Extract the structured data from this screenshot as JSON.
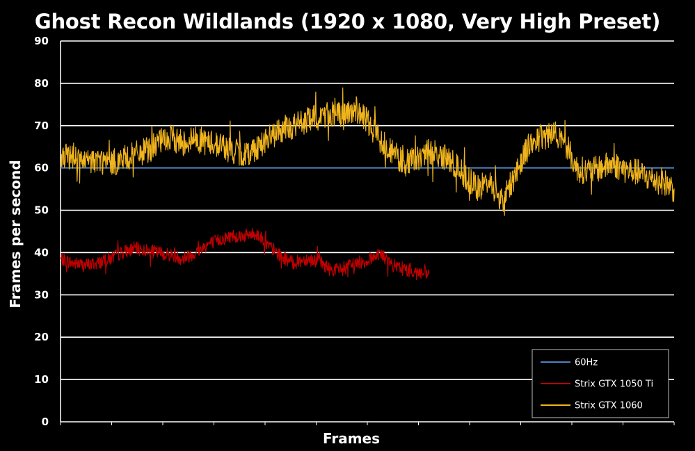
{
  "chart_data": {
    "type": "line",
    "title": "Ghost Recon Wildlands (1920 x 1080, Very High Preset)",
    "xlabel": "Frames",
    "ylabel": "Frames per second",
    "ylim": [
      0,
      90
    ],
    "yticks": [
      "0",
      "10",
      "20",
      "30",
      "40",
      "50",
      "60",
      "70",
      "80",
      "90"
    ],
    "xlim": [
      0,
      100
    ],
    "grid": "horizontal",
    "legend_position": "bottom-right",
    "series": [
      {
        "name": "60Hz",
        "color": "#4f81bd",
        "x": [
          0,
          100
        ],
        "values": [
          60,
          60
        ]
      },
      {
        "name": "Strix GTX 1050 Ti",
        "color": "#c00000",
        "x": [
          0,
          2,
          4,
          6,
          8,
          10,
          12,
          14,
          16,
          18,
          20,
          22,
          24,
          26,
          28,
          30,
          32,
          34,
          36,
          38,
          40,
          42,
          44,
          46,
          48,
          50,
          52,
          54,
          56,
          58,
          60
        ],
        "values": [
          38.5,
          37.5,
          37,
          37.5,
          38.5,
          40,
          41,
          40.5,
          40,
          39.5,
          38.5,
          40,
          42,
          43,
          44,
          44,
          44.5,
          41.5,
          39,
          37.5,
          38.5,
          38,
          36,
          36,
          37.5,
          38,
          40,
          37,
          36,
          35.5,
          34.5
        ]
      },
      {
        "name": "Strix GTX 1060",
        "color": "#f0b41c",
        "x": [
          0,
          2,
          4,
          6,
          8,
          10,
          12,
          14,
          16,
          18,
          20,
          22,
          24,
          26,
          28,
          30,
          32,
          34,
          36,
          38,
          40,
          42,
          44,
          46,
          48,
          50,
          52,
          54,
          56,
          58,
          60,
          62,
          64,
          66,
          68,
          70,
          72,
          74,
          76,
          78,
          80,
          82,
          84,
          86,
          88,
          90,
          92,
          94,
          96,
          98,
          100
        ],
        "values": [
          62,
          63,
          61,
          62,
          61,
          62,
          63,
          64,
          66,
          67,
          66,
          67,
          66,
          65.5,
          64,
          63,
          65,
          67,
          69,
          70,
          71,
          72,
          73,
          72,
          74,
          71,
          67,
          64,
          61,
          62,
          64,
          63,
          61,
          58,
          55,
          57,
          52,
          58,
          65,
          67,
          68,
          67,
          60,
          59,
          60,
          61,
          59.5,
          59,
          57.5,
          57,
          55
        ]
      }
    ]
  }
}
